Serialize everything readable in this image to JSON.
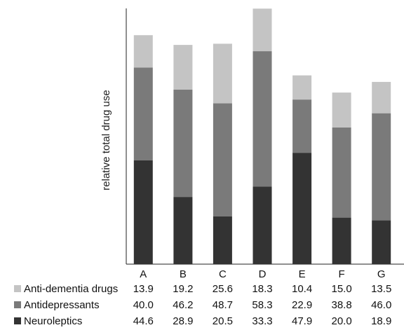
{
  "chart_data": {
    "type": "bar",
    "stacked": true,
    "categories": [
      "A",
      "B",
      "C",
      "D",
      "E",
      "F",
      "G"
    ],
    "ylabel": "relative total drug use",
    "xlabel": "",
    "ylim": [
      0,
      110
    ],
    "grid": false,
    "legend": "table-bottom",
    "series": [
      {
        "name": "Neuroleptics",
        "color": "#333333",
        "values": [
          44.6,
          28.9,
          20.5,
          33.3,
          47.9,
          20.0,
          18.9
        ]
      },
      {
        "name": "Antidepressants",
        "color": "#7a7a7a",
        "values": [
          40.0,
          46.2,
          48.7,
          58.3,
          22.9,
          38.8,
          46.0
        ]
      },
      {
        "name": "Anti-dementia drugs",
        "color": "#c4c4c4",
        "values": [
          13.9,
          19.2,
          25.6,
          18.3,
          10.4,
          15.0,
          13.5
        ]
      }
    ],
    "table_rows": [
      {
        "name": "Anti-dementia drugs",
        "color": "#c4c4c4",
        "values": [
          "13.9",
          "19.2",
          "25.6",
          "18.3",
          "10.4",
          "15.0",
          "13.5"
        ]
      },
      {
        "name": "Antidepressants",
        "color": "#7a7a7a",
        "values": [
          "40.0",
          "46.2",
          "48.7",
          "58.3",
          "22.9",
          "38.8",
          "46.0"
        ]
      },
      {
        "name": "Neuroleptics",
        "color": "#333333",
        "values": [
          "44.6",
          "28.9",
          "20.5",
          "33.3",
          "47.9",
          "20.0",
          "18.9"
        ]
      }
    ]
  }
}
